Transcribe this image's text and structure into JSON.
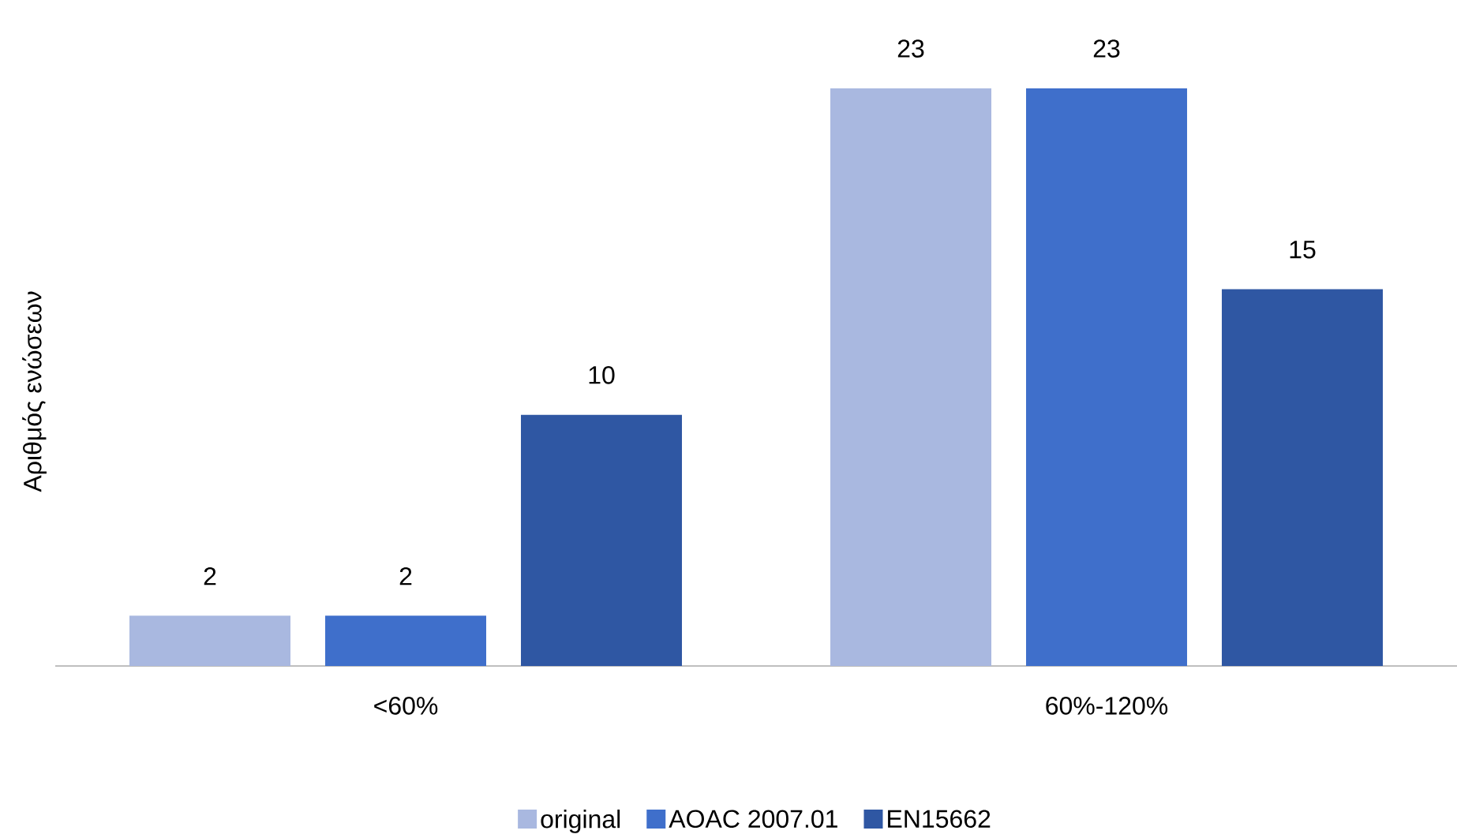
{
  "chart_data": {
    "type": "bar",
    "ylabel": "Αριθμός ενώσεων",
    "categories": [
      "<60%",
      "60%-120%"
    ],
    "series": [
      {
        "name": "original",
        "color": "#a9b8e0",
        "values": [
          2,
          23
        ]
      },
      {
        "name": "AOAC 2007.01",
        "color": "#3f6fcb",
        "values": [
          2,
          23
        ]
      },
      {
        "name": "EN15662",
        "color": "#2f57a3",
        "values": [
          10,
          15
        ]
      }
    ],
    "tick_labels": "x",
    "data_labels": true,
    "legend": "bottom"
  }
}
